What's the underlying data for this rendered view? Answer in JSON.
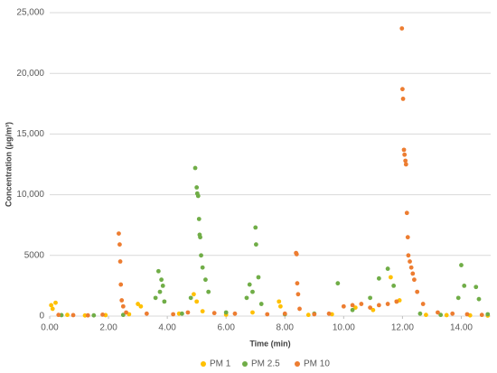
{
  "chart_data": {
    "type": "scatter",
    "x_label": "Time (min)",
    "y_label": "Concentration (μg/m³)",
    "xlim": [
      0,
      15
    ],
    "xticks": [
      {
        "value": 0,
        "label": "0.00"
      },
      {
        "value": 2,
        "label": "2.00"
      },
      {
        "value": 4,
        "label": "4.00"
      },
      {
        "value": 6,
        "label": "6.00"
      },
      {
        "value": 8,
        "label": "8.00"
      },
      {
        "value": 10,
        "label": "10.00"
      },
      {
        "value": 12,
        "label": "12.00"
      },
      {
        "value": 14,
        "label": "14.00"
      }
    ],
    "ylim": [
      0,
      25000
    ],
    "yticks": [
      0,
      5000,
      {
        "value": 10000,
        "label": "10,000"
      },
      {
        "value": 15000,
        "label": "15,000"
      },
      {
        "value": 20000,
        "label": "20,000"
      },
      {
        "value": 25000,
        "label": "25,000"
      }
    ],
    "grid": true,
    "legend": "bottom",
    "series": [
      {
        "name": "PM 1",
        "color": "#FFC000",
        "x": [
          0.05,
          0.1,
          0.2,
          0.6,
          1.2,
          1.9,
          2.7,
          3.0,
          3.1,
          4.4,
          4.9,
          5.0,
          5.2,
          6.0,
          6.9,
          7.8,
          7.85,
          8.8,
          9.6,
          10.4,
          11.0,
          11.6,
          11.8,
          11.9,
          12.8,
          13.5,
          14.3,
          14.9
        ],
        "values": [
          900,
          600,
          1100,
          100,
          50,
          80,
          150,
          1000,
          800,
          200,
          1800,
          1200,
          400,
          120,
          300,
          1200,
          800,
          100,
          150,
          700,
          500,
          3200,
          1200,
          1300,
          100,
          80,
          60,
          40
        ]
      },
      {
        "name": "PM 2.5",
        "color": "#70AD47",
        "x": [
          0.4,
          1.5,
          2.5,
          3.6,
          3.7,
          3.75,
          3.8,
          3.85,
          3.9,
          4.5,
          4.8,
          4.95,
          5.0,
          5.02,
          5.05,
          5.08,
          5.1,
          5.12,
          5.15,
          5.2,
          5.3,
          5.4,
          6.0,
          6.7,
          6.8,
          6.9,
          7.0,
          7.02,
          7.1,
          7.2,
          8.0,
          9.0,
          9.8,
          10.3,
          10.9,
          11.2,
          11.5,
          11.7,
          12.6,
          13.3,
          13.9,
          14.0,
          14.1,
          14.5,
          14.6,
          14.9
        ],
        "values": [
          80,
          60,
          100,
          1500,
          3700,
          2000,
          3000,
          2500,
          1200,
          200,
          1500,
          12200,
          10600,
          10100,
          9900,
          8000,
          6700,
          6500,
          5000,
          4000,
          3000,
          2000,
          300,
          1500,
          2600,
          2000,
          7300,
          5900,
          3200,
          1000,
          150,
          200,
          2700,
          500,
          1500,
          3100,
          3900,
          2500,
          200,
          100,
          1500,
          4200,
          2500,
          2400,
          1400,
          150
        ]
      },
      {
        "name": "PM 10",
        "color": "#ED7D31",
        "x": [
          0.3,
          0.8,
          1.3,
          1.8,
          2.35,
          2.38,
          2.4,
          2.42,
          2.45,
          2.5,
          2.6,
          3.3,
          4.2,
          4.7,
          5.6,
          6.3,
          7.4,
          8.0,
          8.38,
          8.4,
          8.42,
          8.45,
          8.5,
          9.0,
          9.5,
          10.0,
          10.3,
          10.6,
          10.9,
          11.2,
          11.5,
          11.8,
          11.98,
          12.0,
          12.02,
          12.05,
          12.07,
          12.1,
          12.12,
          12.15,
          12.18,
          12.2,
          12.25,
          12.3,
          12.35,
          12.4,
          12.5,
          12.7,
          13.2,
          13.7,
          14.2,
          14.7
        ],
        "values": [
          100,
          80,
          60,
          120,
          6800,
          5900,
          4500,
          2600,
          1300,
          800,
          300,
          200,
          150,
          300,
          250,
          200,
          150,
          200,
          5200,
          5100,
          2700,
          1800,
          600,
          150,
          200,
          800,
          900,
          1000,
          700,
          900,
          1000,
          1200,
          23700,
          18700,
          17900,
          13700,
          13300,
          12800,
          12500,
          8500,
          6500,
          5000,
          4500,
          4000,
          3500,
          3000,
          2000,
          1000,
          300,
          200,
          150,
          100
        ]
      }
    ]
  }
}
